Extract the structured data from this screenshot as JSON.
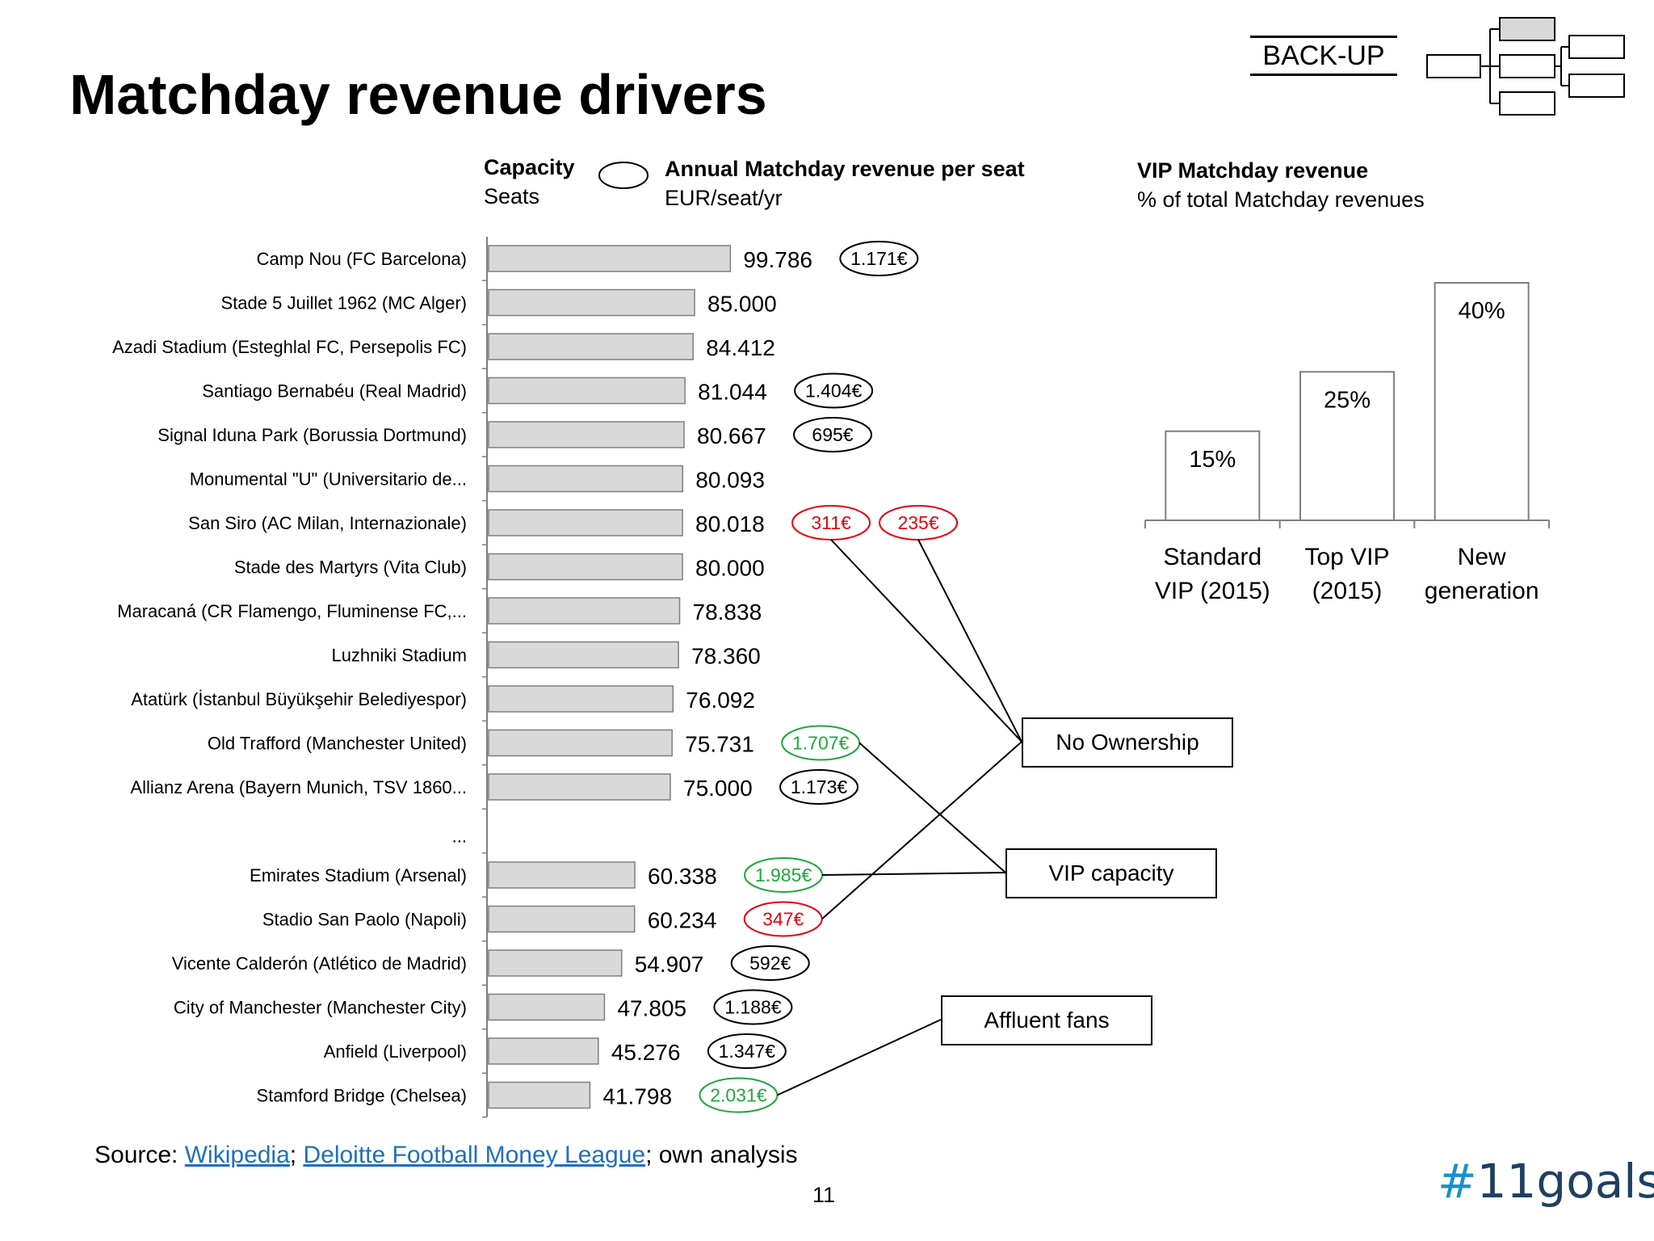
{
  "title": "Matchday revenue drivers",
  "backup_label": "BACK-UP",
  "headers": {
    "capacity_title": "Capacity",
    "capacity_unit": "Seats",
    "revenue_title": "Annual Matchday revenue per seat",
    "revenue_unit": "EUR/seat/yr",
    "vip_title": "VIP Matchday revenue",
    "vip_unit": "% of total Matchday revenues"
  },
  "callouts": {
    "no_ownership": "No Ownership",
    "vip_capacity": "VIP capacity",
    "affluent_fans": "Affluent fans"
  },
  "source": {
    "prefix": "Source: ",
    "link1": "Wikipedia",
    "sep": ";  ",
    "link2": "Deloitte Football Money League",
    "suffix": "; own analysis"
  },
  "page_number": "11",
  "brand": {
    "hash": "#",
    "name": "11goals"
  },
  "colors": {
    "bar_fill": "#d9d9d9",
    "bar_stroke": "#7f7f7f",
    "red": "#e8000f",
    "green": "#1fa83c",
    "black": "#000000"
  },
  "chart_data": [
    {
      "type": "bar",
      "orientation": "horizontal",
      "title": "Capacity",
      "xlabel": "Seats",
      "xlim": [
        0,
        100000
      ],
      "gap_marker": "...",
      "categories": [
        "Camp Nou (FC Barcelona)",
        "Stade 5 Juillet 1962 (MC Alger)",
        "Azadi Stadium (Esteghlal FC, Persepolis FC)",
        "Santiago Bernabéu (Real Madrid)",
        "Signal Iduna Park (Borussia Dortmund)",
        "Monumental \"U\" (Universitario de...",
        "San Siro (AC Milan, Internazionale)",
        "Stade des Martyrs (Vita Club)",
        "Maracaná (CR Flamengo, Fluminense FC,...",
        "Luzhniki Stadium",
        "Atatürk (İstanbul Büyükşehir Belediyespor)",
        "Old Trafford (Manchester United)",
        "Allianz Arena (Bayern Munich, TSV 1860...",
        "...",
        "Emirates Stadium (Arsenal)",
        "Stadio San Paolo (Napoli)",
        "Vicente Calderón (Atlético de Madrid)",
        "City of Manchester (Manchester City)",
        "Anfield (Liverpool)",
        "Stamford Bridge (Chelsea)"
      ],
      "values": [
        99786,
        85000,
        84412,
        81044,
        80667,
        80093,
        80018,
        80000,
        78838,
        78360,
        76092,
        75731,
        75000,
        null,
        60338,
        60234,
        54907,
        47805,
        45276,
        41798
      ],
      "value_labels": [
        "99.786",
        "85.000",
        "84.412",
        "81.044",
        "80.667",
        "80.093",
        "80.018",
        "80.000",
        "78.838",
        "78.360",
        "76.092",
        "75.731",
        "75.000",
        "",
        "60.338",
        "60.234",
        "54.907",
        "47.805",
        "45.276",
        "41.798"
      ],
      "revenue_per_seat": [
        [
          {
            "label": "1.171€",
            "color": "black"
          }
        ],
        [],
        [],
        [
          {
            "label": "1.404€",
            "color": "black"
          }
        ],
        [
          {
            "label": "695€",
            "color": "black"
          }
        ],
        [],
        [
          {
            "label": "311€",
            "color": "red"
          },
          {
            "label": "235€",
            "color": "red"
          }
        ],
        [],
        [],
        [],
        [],
        [
          {
            "label": "1.707€",
            "color": "green"
          }
        ],
        [
          {
            "label": "1.173€",
            "color": "black"
          }
        ],
        [],
        [
          {
            "label": "1.985€",
            "color": "green"
          }
        ],
        [
          {
            "label": "347€",
            "color": "red"
          }
        ],
        [
          {
            "label": "592€",
            "color": "black"
          }
        ],
        [
          {
            "label": "1.188€",
            "color": "black"
          }
        ],
        [
          {
            "label": "1.347€",
            "color": "black"
          }
        ],
        [
          {
            "label": "2.031€",
            "color": "green"
          }
        ]
      ]
    },
    {
      "type": "bar",
      "title": "VIP Matchday revenue",
      "ylabel": "% of total Matchday revenues",
      "categories": [
        "Standard VIP (2015)",
        "Top VIP (2015)",
        "New generation"
      ],
      "category_lines": [
        [
          "Standard",
          "VIP (2015)"
        ],
        [
          "Top VIP",
          "(2015)"
        ],
        [
          "New",
          "generation"
        ]
      ],
      "values": [
        15,
        25,
        40
      ],
      "value_labels": [
        "15%",
        "25%",
        "40%"
      ],
      "ylim": [
        0,
        40
      ]
    }
  ]
}
